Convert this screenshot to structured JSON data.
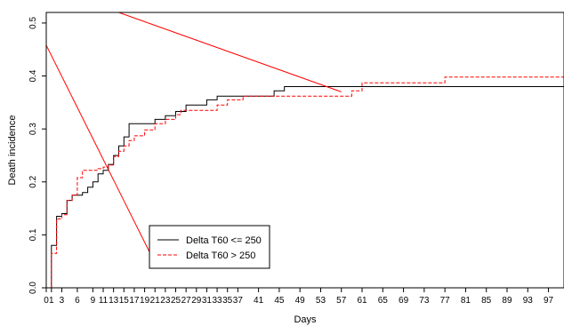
{
  "chart_data": {
    "type": "line",
    "xlabel": "Days",
    "ylabel": "Death incidence",
    "xlim": [
      0,
      100
    ],
    "ylim": [
      0,
      0.52
    ],
    "x_ticks": [
      0,
      1,
      3,
      6,
      9,
      11,
      13,
      15,
      17,
      19,
      21,
      23,
      25,
      27,
      29,
      31,
      33,
      35,
      37,
      41,
      45,
      49,
      53,
      57,
      61,
      65,
      69,
      73,
      77,
      81,
      85,
      89,
      93,
      97
    ],
    "y_ticks": [
      0.0,
      0.1,
      0.2,
      0.3,
      0.4,
      0.5
    ],
    "y_tick_labels": [
      "0.0",
      "0.1",
      "0.2",
      "0.3",
      "0.4",
      "0.5"
    ],
    "grid": false,
    "legend": {
      "placement": "bottom-center",
      "entries": [
        "Delta T60 <= 250",
        "Delta T60 > 250"
      ]
    },
    "series": [
      {
        "name": "Delta T60 <= 250",
        "color": "#000000",
        "line_style": "solid",
        "step_points": [
          [
            0,
            0.0
          ],
          [
            1,
            0.08
          ],
          [
            2,
            0.135
          ],
          [
            3,
            0.14
          ],
          [
            4,
            0.165
          ],
          [
            5,
            0.175
          ],
          [
            7,
            0.18
          ],
          [
            8,
            0.19
          ],
          [
            9,
            0.2
          ],
          [
            10,
            0.215
          ],
          [
            11,
            0.222
          ],
          [
            12,
            0.233
          ],
          [
            13,
            0.25
          ],
          [
            14,
            0.268
          ],
          [
            15,
            0.285
          ],
          [
            16,
            0.31
          ],
          [
            20,
            0.31
          ],
          [
            21,
            0.318
          ],
          [
            23,
            0.325
          ],
          [
            25,
            0.333
          ],
          [
            27,
            0.345
          ],
          [
            31,
            0.355
          ],
          [
            33,
            0.362
          ],
          [
            44,
            0.372
          ],
          [
            46,
            0.38
          ],
          [
            100,
            0.38
          ]
        ]
      },
      {
        "name": "Delta T60 > 250",
        "color": "#ff0000",
        "line_style": "dashed",
        "step_points": [
          [
            0,
            0.0
          ],
          [
            1,
            0.065
          ],
          [
            2,
            0.13
          ],
          [
            3,
            0.138
          ],
          [
            4,
            0.165
          ],
          [
            5,
            0.175
          ],
          [
            6,
            0.208
          ],
          [
            7,
            0.222
          ],
          [
            10,
            0.225
          ],
          [
            11,
            0.228
          ],
          [
            12,
            0.232
          ],
          [
            13,
            0.248
          ],
          [
            14,
            0.258
          ],
          [
            15,
            0.268
          ],
          [
            16,
            0.278
          ],
          [
            17,
            0.287
          ],
          [
            19,
            0.298
          ],
          [
            21,
            0.31
          ],
          [
            23,
            0.318
          ],
          [
            25,
            0.327
          ],
          [
            26,
            0.335
          ],
          [
            33,
            0.345
          ],
          [
            35,
            0.355
          ],
          [
            38,
            0.362
          ],
          [
            57,
            0.362
          ],
          [
            59,
            0.372
          ],
          [
            61,
            0.387
          ],
          [
            77,
            0.398
          ],
          [
            100,
            0.398
          ]
        ]
      }
    ],
    "annotation_lines": [
      {
        "color": "#ff0000",
        "from": [
          0,
          0.458
        ],
        "to": [
          21,
          0.047
        ]
      },
      {
        "color": "#ff0000",
        "from": [
          14,
          0.52
        ],
        "to": [
          57,
          0.37
        ]
      },
      {
        "color": "#ff0000",
        "from": [
          0,
          0.0
        ],
        "to": [
          0,
          0.035
        ]
      }
    ]
  }
}
